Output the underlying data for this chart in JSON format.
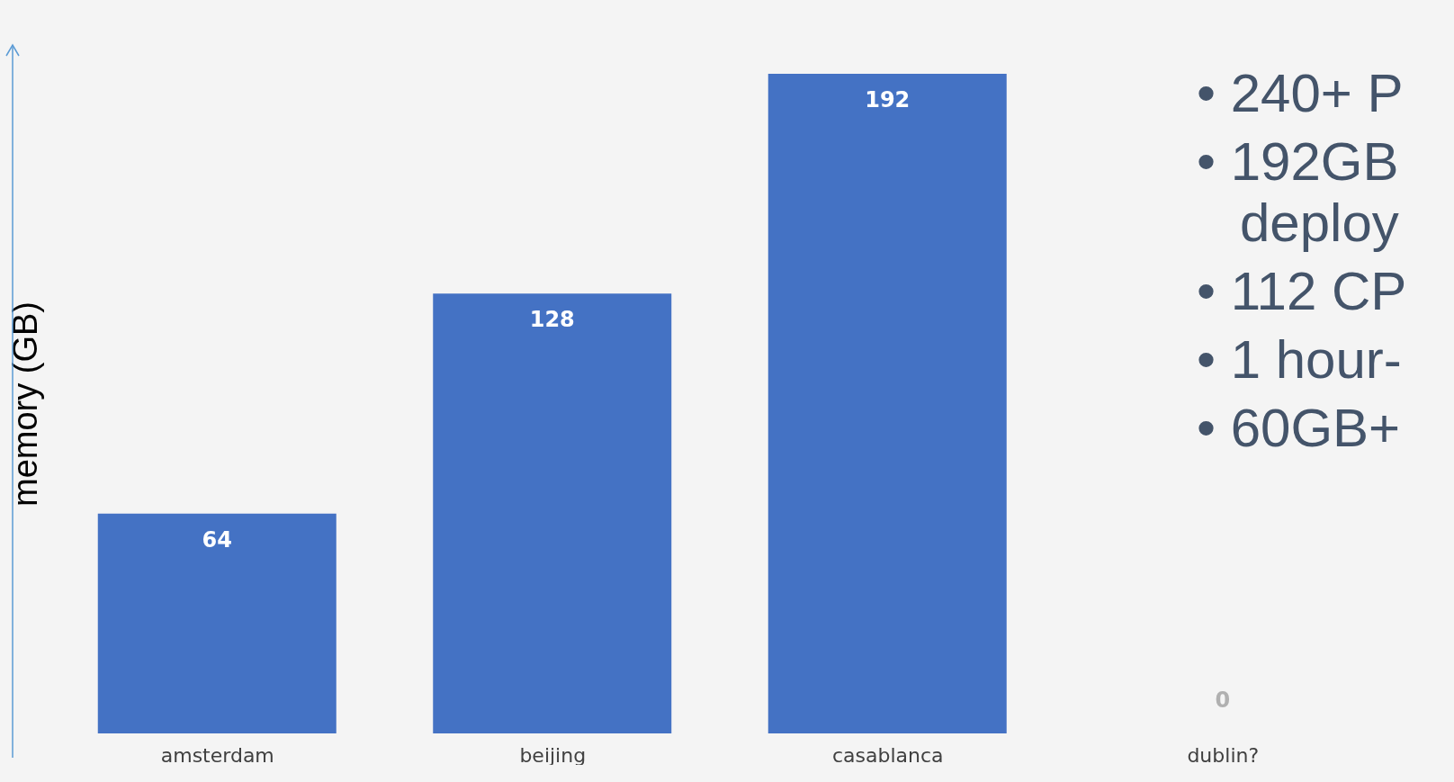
{
  "chart_data": {
    "type": "bar",
    "ylabel": "memory (GB)",
    "categories": [
      "amsterdam",
      "beijing",
      "casablanca",
      "dublin?"
    ],
    "values": [
      64,
      128,
      192,
      0
    ],
    "color": "#4472c4",
    "data_labels": true,
    "grid": false,
    "annotations": [
      "• 240+ P",
      "• 192GB deploy",
      "• 112 CP",
      "• 1 hour-",
      "• 60GB+"
    ]
  }
}
